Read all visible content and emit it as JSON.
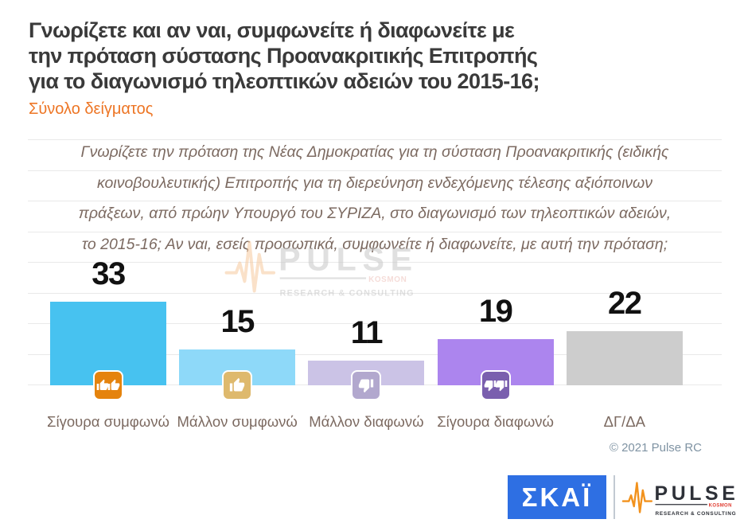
{
  "header": {
    "title_lines": [
      "Γνωρίζετε και αν ναι, συμφωνείτε ή διαφωνείτε με",
      "την πρόταση σύστασης Προανακριτικής Επιτροπής",
      "για το διαγωνισμό τηλεοπτικών αδειών του 2015-16;"
    ],
    "subtitle": "Σύνολο δείγματος"
  },
  "note_lines": [
    "Γνωρίζετε την πρόταση της Νέας Δημοκρατίας για τη σύσταση Προανακριτικής (ειδικής",
    "κοινοβουλευτικής) Επιτροπής για τη διερεύνηση ενδεχόμενης τέλεσης αξιόποινων",
    "πράξεων, από πρώην Υπουργό του ΣΥΡΙΖΑ, στο διαγωνισμό των τηλεοπτικών αδειών,",
    "το 2015-16; Αν ναι, εσείς προσωπικά, συμφωνείτε ή διαφωνείτε, με αυτή την πρόταση;"
  ],
  "chart_data": {
    "type": "bar",
    "title": "Γνωρίζετε και αν ναι, συμφωνείτε ή διαφωνείτε με την πρόταση σύστασης Προανακριτικής Επιτροπής για το διαγωνισμό τηλεοπτικών αδειών του 2015-16;",
    "subtitle": "Σύνολο δείγματος",
    "question_note": "Γνωρίζετε την πρόταση της Νέας Δημοκρατίας για τη σύσταση Προανακριτικής (ειδικής κοινοβουλευτικής) Επιτροπής για τη διερεύνηση ενδεχόμενης τέλεσης αξιόποινων πράξεων, από πρώην Υπουργό του ΣΥΡΙΖΑ, στο διαγωνισμό των τηλεοπτικών αδειών, το 2015-16; Αν ναι, εσείς προσωπικά, συμφωνείτε ή διαφωνείτε, με αυτή την πρόταση;",
    "categories": [
      "Σίγουρα συμφωνώ",
      "Μάλλον συμφωνώ",
      "Μάλλον διαφωνώ",
      "Σίγουρα διαφωνώ",
      "ΔΓ/ΔΑ"
    ],
    "values": [
      33,
      15,
      11,
      19,
      22
    ],
    "unit": "percent",
    "ylim": [
      0,
      40
    ],
    "grid": true,
    "legend": "none",
    "bar_colors": [
      "#47c2f0",
      "#8ed9f9",
      "#cbc3e6",
      "#ac85ee",
      "#cdcdcd"
    ],
    "icons": [
      "double-thumbs-up-icon",
      "thumbs-up-icon",
      "thumbs-down-icon",
      "double-thumbs-down-icon",
      null
    ],
    "icon_colors": [
      "#e5830d",
      "#deb96d",
      "#b2a8ce",
      "#7a5fae",
      null
    ]
  },
  "watermark": {
    "brand": "PULSE",
    "sub_brand": "KOSMON",
    "tagline": "RESEARCH & CONSULTING"
  },
  "footer": {
    "copyright": "© 2021 Pulse RC",
    "skai_logo_text": "ΣΚΑΪ",
    "pulse_logo": {
      "brand": "PULSE",
      "sub_brand": "KOSMON",
      "tagline": "RESEARCH & CONSULTING"
    }
  },
  "colors": {
    "title": "#3a3a3a",
    "subtitle_accent": "#ed7524",
    "note_text": "#7c6a61",
    "category_label": "#7c6a61",
    "value_label": "#111111",
    "gridline": "#e9e9e9",
    "copyright": "#7f93a3",
    "skai_blue": "#2e6fe3",
    "pulse_dark": "#2e3138",
    "pulse_orange": "#f2921d",
    "pulse_red": "#e03c31"
  }
}
